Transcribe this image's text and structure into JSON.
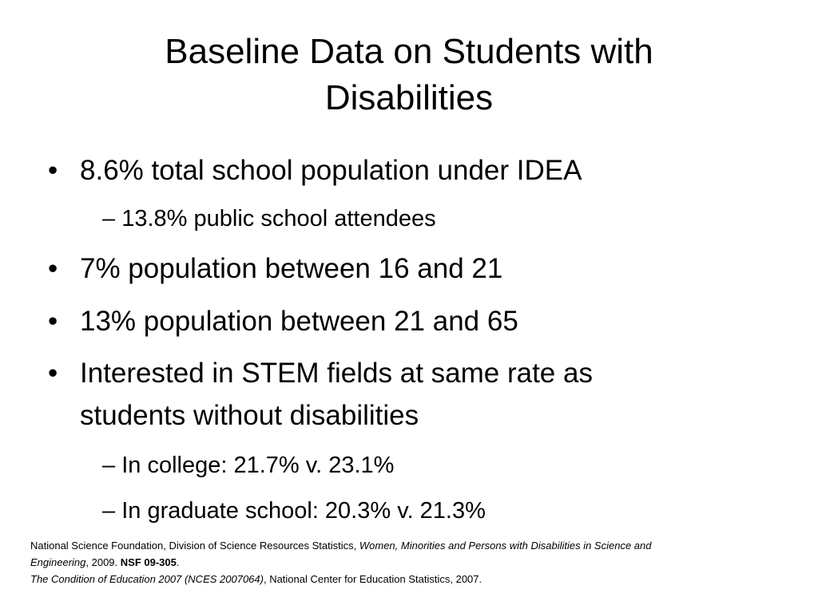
{
  "slide": {
    "title_line1": "Baseline Data on Students with",
    "title_line2": "Disabilities",
    "bullet_symbol": "•",
    "dash_symbol": "–",
    "bullets": [
      {
        "text": "8.6% total school population under IDEA"
      },
      {
        "sub": "13.8% public school attendees"
      },
      {
        "text": "7% population between 16 and 21"
      },
      {
        "text": "13% population between 21 and 65"
      },
      {
        "text_line1": "Interested in STEM fields at same rate as",
        "text_line2": "students without disabilities"
      },
      {
        "sub": "In college: 21.7% v. 23.1%"
      },
      {
        "sub": "In graduate school: 20.3% v. 21.3%"
      }
    ],
    "footnote": {
      "line1_plain": "National Science Foundation, Division of Science Resources Statistics, ",
      "line1_italic": "Women, Minorities and Persons with Disabilities in Science and",
      "line2_italic": "Engineering",
      "line2_plain": ", 2009. ",
      "line2_bold": "NSF 09-305",
      "line2_end": ".",
      "line3_italic": "The Condition of Education 2007 (NCES 2007064)",
      "line3_plain": ", National Center for Education Statistics,  2007."
    }
  }
}
